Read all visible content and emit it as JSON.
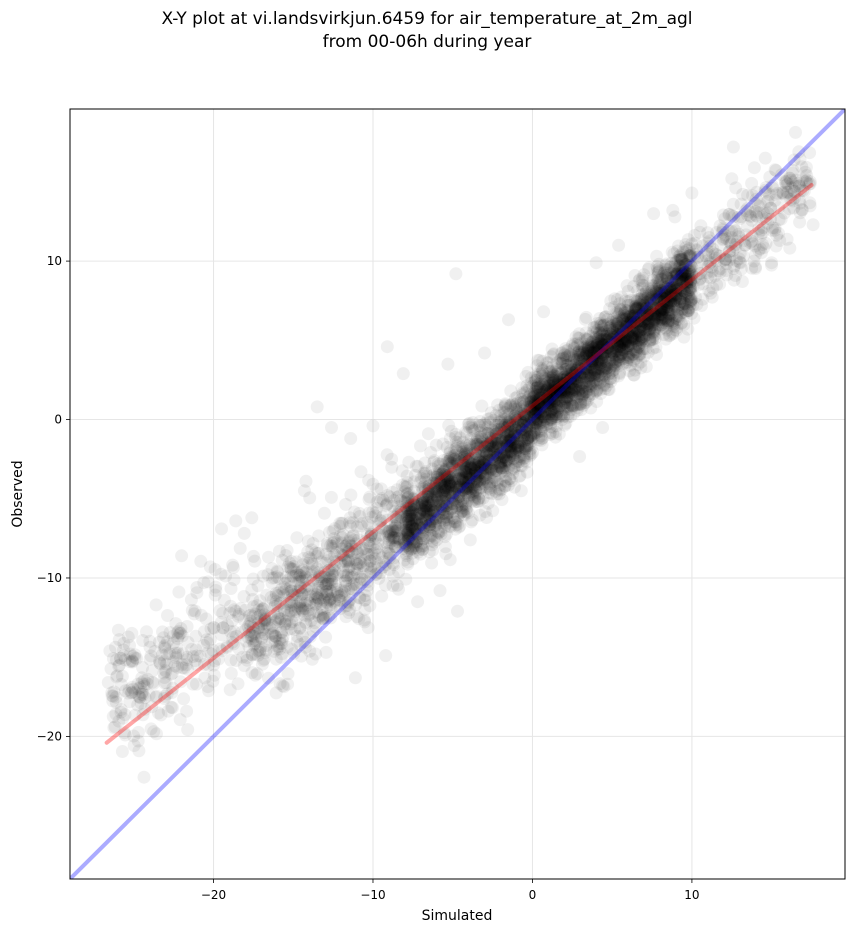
{
  "chart_data": {
    "type": "scatter",
    "title_line1": "X-Y plot at vi.landsvirkjun.6459 for air_temperature_at_2m_agl",
    "title_line2": "from 00-06h during year",
    "xlabel": "Simulated",
    "ylabel": "Observed",
    "xlim": [
      -29,
      19.6
    ],
    "ylim": [
      -29,
      19.6
    ],
    "xticks": [
      -20,
      -10,
      0,
      10
    ],
    "yticks": [
      -20,
      -10,
      0,
      10
    ],
    "xtick_labels": [
      "−20",
      "−10",
      "0",
      "10"
    ],
    "ytick_labels": [
      "−20",
      "−10",
      "0",
      "10"
    ],
    "grid": true,
    "point_color": "#000000",
    "point_alpha": 0.06,
    "identity_line": {
      "color": "#0000ff",
      "alpha": 0.33,
      "x": [
        -29,
        19.6
      ],
      "y": [
        -29,
        19.6
      ]
    },
    "fit_line": {
      "color": "#ff0000",
      "alpha": 0.35,
      "x": [
        -26.7,
        17.5
      ],
      "y": [
        -20.4,
        14.8
      ]
    },
    "point_cloud": {
      "description_segments": [
        {
          "x_range": [
            -26.5,
            -18
          ],
          "y_center_slope": 0.62,
          "y_center_offset": -1.2,
          "spread": 1.9,
          "count": 260
        },
        {
          "x_range": [
            -18,
            -8
          ],
          "y_center_slope": 0.72,
          "y_center_offset": -0.9,
          "spread": 1.8,
          "count": 700
        },
        {
          "x_range": [
            -8,
            0
          ],
          "y_center_slope": 0.82,
          "y_center_offset": -0.2,
          "spread": 1.3,
          "count": 1500
        },
        {
          "x_range": [
            0,
            10
          ],
          "y_center_slope": 0.86,
          "y_center_offset": 0.4,
          "spread": 1.1,
          "count": 2200
        },
        {
          "x_range": [
            10,
            17.5
          ],
          "y_center_slope": 0.82,
          "y_center_offset": 0.9,
          "spread": 1.3,
          "count": 260
        }
      ],
      "sample_points": [
        [
          -26.6,
          -16.6
        ],
        [
          -26.5,
          -14.6
        ],
        [
          -25.9,
          -15.5
        ],
        [
          -24.5,
          -16.3
        ],
        [
          -24.2,
          -13.4
        ],
        [
          -23.6,
          -11.7
        ],
        [
          -22.5,
          -14.1
        ],
        [
          -22.0,
          -8.6
        ],
        [
          -20.2,
          -9.3
        ],
        [
          -19.5,
          -6.9
        ],
        [
          -18.6,
          -6.4
        ],
        [
          -17.6,
          -6.2
        ],
        [
          -14.3,
          -4.5
        ],
        [
          -14.2,
          -3.9
        ],
        [
          -13.5,
          0.8
        ],
        [
          -12.6,
          -0.5
        ],
        [
          -11.4,
          -1.2
        ],
        [
          -10.0,
          -0.4
        ],
        [
          -9.1,
          4.6
        ],
        [
          -8.1,
          2.9
        ],
        [
          -5.3,
          3.5
        ],
        [
          -4.8,
          9.2
        ],
        [
          -3.0,
          4.2
        ],
        [
          -1.5,
          6.3
        ],
        [
          0.7,
          6.8
        ],
        [
          4.0,
          9.9
        ],
        [
          5.4,
          11.0
        ],
        [
          7.6,
          13.0
        ],
        [
          8.8,
          13.2
        ],
        [
          10.0,
          14.3
        ],
        [
          12.5,
          15.2
        ],
        [
          12.6,
          17.2
        ],
        [
          14.6,
          16.5
        ],
        [
          16.7,
          16.9
        ],
        [
          17.2,
          15.4
        ],
        [
          16.1,
          13.3
        ],
        [
          17.6,
          12.3
        ],
        [
          15.0,
          9.9
        ],
        [
          13.1,
          9.5
        ],
        [
          10.6,
          7.2
        ],
        [
          9.5,
          5.2
        ],
        [
          4.4,
          -0.5
        ],
        [
          0.6,
          -1.6
        ],
        [
          -2.1,
          -4.4
        ],
        [
          -0.7,
          -4.5
        ],
        [
          -3.9,
          -7.6
        ],
        [
          -5.8,
          -10.8
        ],
        [
          -4.7,
          -12.1
        ],
        [
          -7.2,
          -11.5
        ],
        [
          -9.2,
          -14.9
        ],
        [
          -11.1,
          -16.3
        ],
        [
          -13.6,
          -14.8
        ],
        [
          -15.1,
          -14.5
        ],
        [
          -17.0,
          -13.8
        ],
        [
          -20.0,
          -15.5
        ]
      ]
    }
  }
}
